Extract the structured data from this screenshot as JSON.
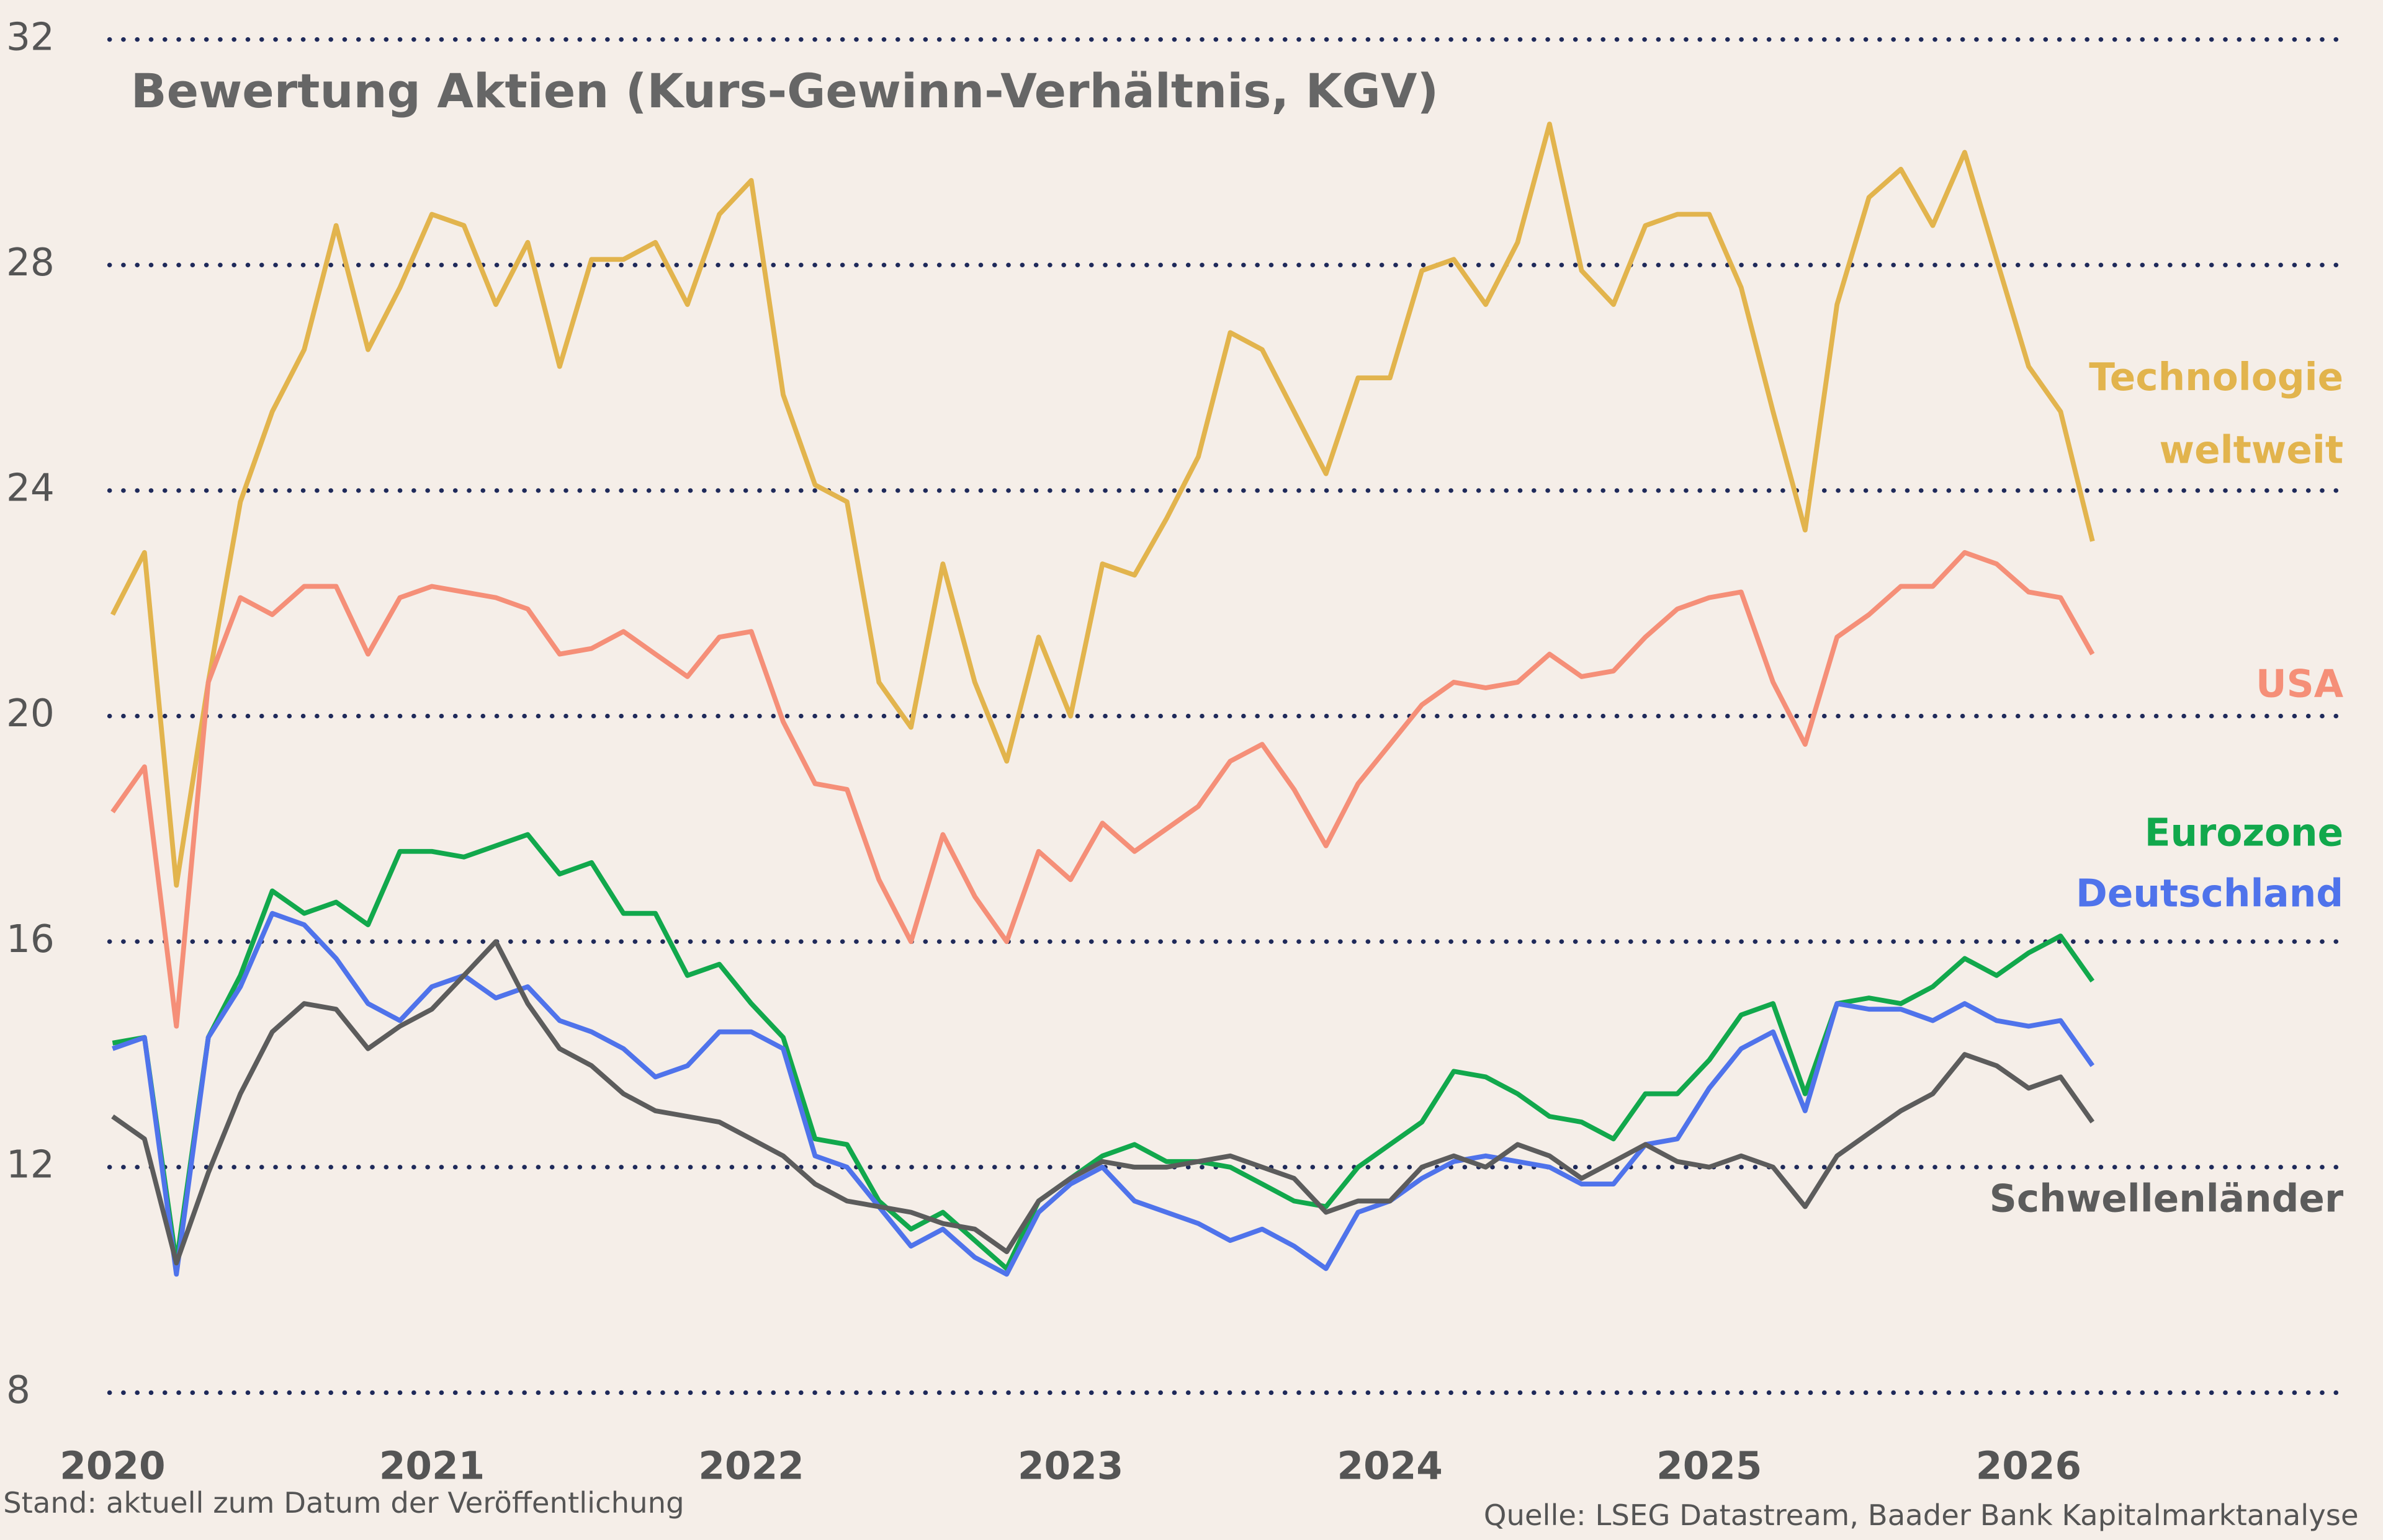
{
  "chart_data": {
    "type": "line",
    "title": "Bewertung Aktien (Kurs-Gewinn-Verhältnis, KGV)",
    "footnote_left": "Stand: aktuell zum Datum der Veröffentlichung",
    "footnote_right": "Quelle: LSEG Datastream, Baader Bank Kapitalmarktanalyse",
    "x": [
      2020.0,
      2020.1,
      2020.2,
      2020.3,
      2020.4,
      2020.5,
      2020.6,
      2020.7,
      2020.8,
      2020.9,
      2021.0,
      2021.1,
      2021.2,
      2021.3,
      2021.4,
      2021.5,
      2021.6,
      2021.7,
      2021.8,
      2021.9,
      2022.0,
      2022.1,
      2022.2,
      2022.3,
      2022.4,
      2022.5,
      2022.6,
      2022.7,
      2022.8,
      2022.9,
      2023.0,
      2023.1,
      2023.2,
      2023.3,
      2023.4,
      2023.5,
      2023.6,
      2023.7,
      2023.8,
      2023.9,
      2024.0,
      2024.1,
      2024.2,
      2024.3,
      2024.4,
      2024.5,
      2024.6,
      2024.7,
      2024.8,
      2024.9,
      2025.0,
      2025.1,
      2025.2,
      2025.3,
      2025.4,
      2025.5,
      2025.6,
      2025.7,
      2025.8,
      2025.9,
      2026.0,
      2026.1,
      2026.2
    ],
    "xlim": [
      2020,
      2027
    ],
    "xticks": [
      2020,
      2021,
      2022,
      2023,
      2024,
      2025,
      2026
    ],
    "ylim": [
      8,
      32
    ],
    "yticks": [
      8,
      12,
      16,
      20,
      24,
      28,
      32
    ],
    "grid": true,
    "series": [
      {
        "name": "Technologie weltweit",
        "color": "#e2b44d",
        "values": [
          21.8,
          22.9,
          17.0,
          20.6,
          23.8,
          25.4,
          26.5,
          28.7,
          26.5,
          27.6,
          28.9,
          28.7,
          27.3,
          28.4,
          26.2,
          28.1,
          28.1,
          28.4,
          27.3,
          28.9,
          29.5,
          25.7,
          24.1,
          23.8,
          20.6,
          19.8,
          22.7,
          20.6,
          19.2,
          21.4,
          20.0,
          22.7,
          22.5,
          23.5,
          24.6,
          26.8,
          26.5,
          25.4,
          24.3,
          26.0,
          26.0,
          27.9,
          28.1,
          27.3,
          28.4,
          30.5,
          27.9,
          27.3,
          28.7,
          28.9,
          28.9,
          27.6,
          25.4,
          23.3,
          27.3,
          29.2,
          29.7,
          28.7,
          30.0,
          28.1,
          26.2,
          25.4,
          23.1
        ]
      },
      {
        "name": "USA",
        "color": "#f58f78",
        "values": [
          18.3,
          19.1,
          14.5,
          20.6,
          22.1,
          21.8,
          22.3,
          22.3,
          21.1,
          22.1,
          22.3,
          22.2,
          22.1,
          21.9,
          21.1,
          21.2,
          21.5,
          21.1,
          20.7,
          21.4,
          21.5,
          19.9,
          18.8,
          18.7,
          17.1,
          16.0,
          17.9,
          16.8,
          16.0,
          17.6,
          17.1,
          18.1,
          17.6,
          18.0,
          18.4,
          19.2,
          19.5,
          18.7,
          17.7,
          18.8,
          19.5,
          20.2,
          20.6,
          20.5,
          20.6,
          21.1,
          20.7,
          20.8,
          21.4,
          21.9,
          22.1,
          22.2,
          20.6,
          19.5,
          21.4,
          21.8,
          22.3,
          22.3,
          22.9,
          22.7,
          22.2,
          22.1,
          21.1
        ]
      },
      {
        "name": "Eurozone",
        "color": "#11a84c",
        "values": [
          14.2,
          14.3,
          10.3,
          14.3,
          15.4,
          16.9,
          16.5,
          16.7,
          16.3,
          17.6,
          17.6,
          17.5,
          17.7,
          17.9,
          17.2,
          17.4,
          16.5,
          16.5,
          15.4,
          15.6,
          14.9,
          14.3,
          12.5,
          12.4,
          11.4,
          10.9,
          11.2,
          10.7,
          10.2,
          11.4,
          11.8,
          12.2,
          12.4,
          12.1,
          12.1,
          12.0,
          11.7,
          11.4,
          11.3,
          12.0,
          12.4,
          12.8,
          13.7,
          13.6,
          13.3,
          12.9,
          12.8,
          12.5,
          13.3,
          13.3,
          13.9,
          14.7,
          14.9,
          13.3,
          14.9,
          15.0,
          14.9,
          15.2,
          15.7,
          15.4,
          15.8,
          16.1,
          15.3
        ]
      },
      {
        "name": "Deutschland",
        "color": "#4f73eb",
        "values": [
          14.1,
          14.3,
          10.1,
          14.3,
          15.2,
          16.5,
          16.3,
          15.7,
          14.9,
          14.6,
          15.2,
          15.4,
          15.0,
          15.2,
          14.6,
          14.4,
          14.1,
          13.6,
          13.8,
          14.4,
          14.4,
          14.1,
          12.2,
          12.0,
          11.3,
          10.6,
          10.9,
          10.4,
          10.1,
          11.2,
          11.7,
          12.0,
          11.4,
          11.2,
          11.0,
          10.7,
          10.9,
          10.6,
          10.2,
          11.2,
          11.4,
          11.8,
          12.1,
          12.2,
          12.1,
          12.0,
          11.7,
          11.7,
          12.4,
          12.5,
          13.4,
          14.1,
          14.4,
          13.0,
          14.9,
          14.8,
          14.8,
          14.6,
          14.9,
          14.6,
          14.5,
          14.6,
          13.8
        ]
      },
      {
        "name": "Schwellenländer",
        "color": "#5c5c5c",
        "values": [
          12.9,
          12.5,
          10.3,
          11.9,
          13.3,
          14.4,
          14.9,
          14.8,
          14.1,
          14.5,
          14.8,
          15.4,
          16.0,
          14.9,
          14.1,
          13.8,
          13.3,
          13.0,
          12.9,
          12.8,
          12.5,
          12.2,
          11.7,
          11.4,
          11.3,
          11.2,
          11.0,
          10.9,
          10.5,
          11.4,
          11.8,
          12.1,
          12.0,
          12.0,
          12.1,
          12.2,
          12.0,
          11.8,
          11.2,
          11.4,
          11.4,
          12.0,
          12.2,
          12.0,
          12.4,
          12.2,
          11.8,
          12.1,
          12.4,
          12.1,
          12.0,
          12.2,
          12.0,
          11.3,
          12.2,
          12.6,
          13.0,
          13.3,
          14.0,
          13.8,
          13.4,
          13.6,
          12.8
        ]
      }
    ]
  }
}
